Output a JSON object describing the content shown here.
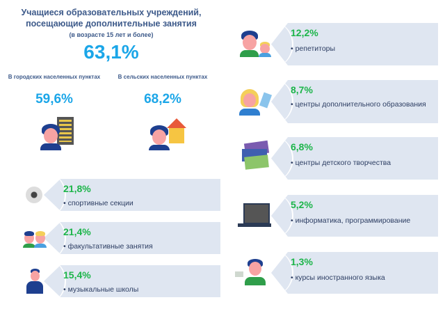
{
  "header": {
    "title": "Учащиеся образовательных учреждений, посещающие дополнительные занятия",
    "subtitle": "(в возрасте 15 лет и более)",
    "total": "63,1%"
  },
  "urban": {
    "label": "В городских населенных пунктах",
    "value": "59,6%"
  },
  "rural": {
    "label": "В сельских населенных пунктах",
    "value": "68,2%"
  },
  "left_items": [
    {
      "value": "21,8%",
      "label": "спортивные секции",
      "icon": "soccer-ball-icon"
    },
    {
      "value": "21,4%",
      "label": "факультативные занятия",
      "icon": "students-icon"
    },
    {
      "value": "15,4%",
      "label": "музыкальные школы",
      "icon": "singer-icon"
    }
  ],
  "right_items": [
    {
      "value": "12,2%",
      "label": "репетиторы",
      "icon": "tutor-icon"
    },
    {
      "value": "8,7%",
      "label": "центры дополнительного образования",
      "icon": "student-books-icon"
    },
    {
      "value": "6,8%",
      "label": "центры детского творчества",
      "icon": "tickets-icon"
    },
    {
      "value": "5,2%",
      "label": "информатика, программирование",
      "icon": "laptop-icon"
    },
    {
      "value": "1,3%",
      "label": "курсы иностранного языка",
      "icon": "language-student-icon"
    }
  ],
  "colors": {
    "accent": "#1ba6e8",
    "value_green": "#1db54a",
    "panel": "#dfe6f1",
    "text": "#3d5a8a"
  }
}
